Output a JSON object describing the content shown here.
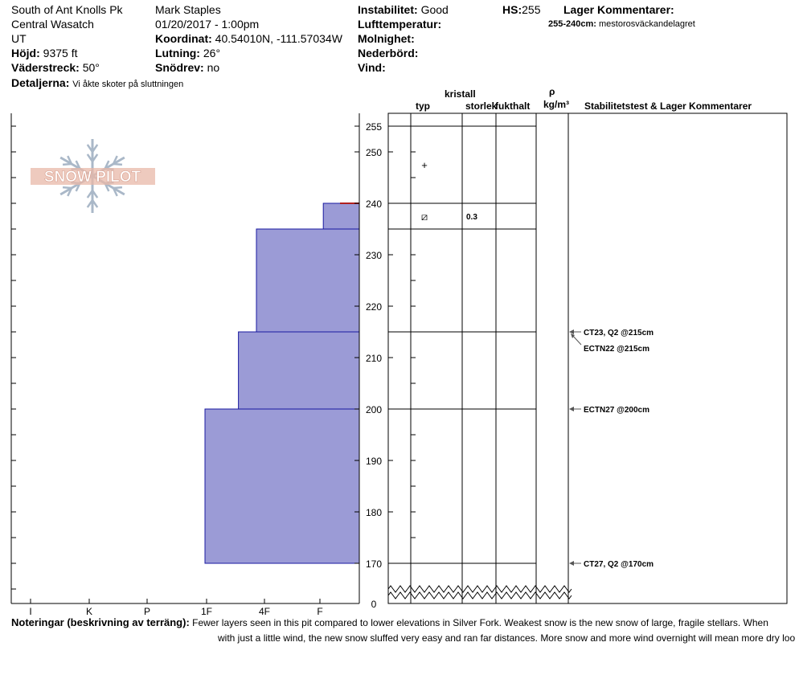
{
  "header": {
    "location": "South of Ant Knolls Pk",
    "range": "Central Wasatch",
    "state": "UT",
    "observer": "Mark Staples",
    "datetime": "01/20/2017 - 1:00pm",
    "elevation_label": "Höjd:",
    "elevation_value": "9375 ft",
    "aspect_label": "Väderstreck:",
    "aspect_value": "50°",
    "coord_label": "Koordinat:",
    "coord_value": "40.54010N, -111.57034W",
    "slope_label": "Lutning:",
    "slope_value": "26°",
    "drift_label": "Snödrev:",
    "drift_value": "no",
    "details_label": "Detaljerna:",
    "details_value": "Vi åkte skoter på sluttningen",
    "stability_label": "Instabilitet:",
    "stability_value": "Good",
    "airtemp_label": "Lufttemperatur:",
    "clouds_label": "Molnighet:",
    "precip_label": "Nederbörd:",
    "wind_label": "Vind:",
    "hs_label": "HS:",
    "hs_value": "255",
    "layer_comments_label": "Lager Kommentarer:",
    "layer_comment_range": "255-240cm:",
    "layer_comment_text": "mestorosväckandelagret"
  },
  "logo_text": "SNOW PILOT",
  "columns": {
    "crystal": "kristall",
    "type": "typ",
    "size": "storlek",
    "moisture": "fukthalt",
    "rho": "ρ",
    "density_unit": "kg/m³",
    "stability": "Stabilitetstest & Lager Kommentarer"
  },
  "notes": {
    "label": "Noteringar (beskrivning av terräng):",
    "line1": "Fewer layers seen in this pit compared to lower elevations in Silver Fork. Weakest snow is the new snow of large, fragile stellars. When",
    "line2": "with just a little wind, the new snow sluffed very easy and ran far distances. More snow and more wind overnight will mean more dry loo"
  },
  "chart_data": {
    "type": "bar",
    "hand_hardness_ticks": [
      "I",
      "K",
      "P",
      "1F",
      "4F",
      "F"
    ],
    "height_ticks": [
      255,
      250,
      240,
      230,
      220,
      210,
      200,
      190,
      180,
      170,
      0
    ],
    "ylim": [
      170,
      255
    ],
    "layers": [
      {
        "top": 255,
        "bottom": 240,
        "hardness": "F"
      },
      {
        "top": 240,
        "bottom": 235,
        "hardness": "F+"
      },
      {
        "top": 235,
        "bottom": 215,
        "hardness": "4F"
      },
      {
        "top": 215,
        "bottom": 200,
        "hardness": "4F-"
      },
      {
        "top": 200,
        "bottom": 170,
        "hardness": "1F"
      }
    ],
    "hardness_index": {
      "I": 6,
      "K": 5,
      "P": 4,
      "1F": 3,
      "1F-": 2.9,
      "4F-": 2.35,
      "4F": 2,
      "F+": 0.7,
      "F": 0
    },
    "boundaries": [
      255,
      240,
      235,
      215,
      200,
      170
    ],
    "weak_layer_marker": 240,
    "crystals": [
      {
        "height": 247.5,
        "symbol": "+",
        "size": ""
      },
      {
        "height": 237.5,
        "symbol": "⧄",
        "size": "0.3"
      }
    ],
    "tests": [
      {
        "height": 215,
        "label": "CT23, Q2 @215cm"
      },
      {
        "height": 215,
        "label": "ECTN22 @215cm",
        "offset": true
      },
      {
        "height": 200,
        "label": "ECTN27 @200cm"
      },
      {
        "height": 170,
        "label": "CT27, Q2 @170cm"
      }
    ],
    "colors": {
      "fill": "#9b9bd6",
      "edge": "#1a1aa0",
      "weak": "#b02020",
      "logo": "#e8b8a8",
      "flake": "#aab8c8"
    }
  }
}
